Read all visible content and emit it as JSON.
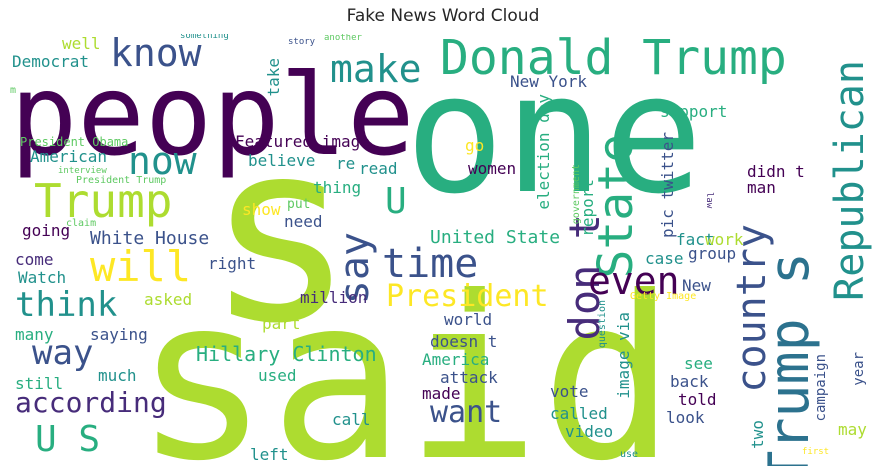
{
  "title": "Fake News Word Cloud",
  "colors": {
    "dark_purple": "#440154",
    "purple": "#472c7a",
    "indigo": "#3b528b",
    "blue": "#2c728e",
    "teal": "#21918c",
    "green_teal": "#28ae80",
    "green": "#5ec962",
    "lime": "#addc30",
    "yellow": "#fde725"
  },
  "words": [
    {
      "id": "said",
      "text": "said"
    },
    {
      "id": "s",
      "text": "s"
    },
    {
      "id": "one",
      "text": "one"
    },
    {
      "id": "people",
      "text": "people"
    },
    {
      "id": "donald-trump",
      "text": "Donald Trump"
    },
    {
      "id": "trump-big",
      "text": "Trump"
    },
    {
      "id": "trump-s",
      "text": "Trump s"
    },
    {
      "id": "know",
      "text": "know"
    },
    {
      "id": "make",
      "text": "make"
    },
    {
      "id": "now",
      "text": "now"
    },
    {
      "id": "will",
      "text": "will"
    },
    {
      "id": "say",
      "text": "say"
    },
    {
      "id": "u",
      "text": "U"
    },
    {
      "id": "time",
      "text": "time"
    },
    {
      "id": "republican",
      "text": "Republican"
    },
    {
      "id": "state",
      "text": "State"
    },
    {
      "id": "country",
      "text": "country"
    },
    {
      "id": "dont",
      "text": "don t"
    },
    {
      "id": "even",
      "text": "even"
    },
    {
      "id": "think",
      "text": "think"
    },
    {
      "id": "way",
      "text": "way"
    },
    {
      "id": "according",
      "text": "according"
    },
    {
      "id": "us",
      "text": "U S"
    },
    {
      "id": "president",
      "text": "President"
    },
    {
      "id": "want",
      "text": "want"
    },
    {
      "id": "hillary-clinton",
      "text": "Hillary Clinton"
    },
    {
      "id": "white-house",
      "text": "White House"
    },
    {
      "id": "united-state",
      "text": "United State"
    },
    {
      "id": "featured-image",
      "text": "Featured image"
    },
    {
      "id": "new-york",
      "text": "New York"
    },
    {
      "id": "democrat",
      "text": "Democrat"
    },
    {
      "id": "well",
      "text": "well"
    },
    {
      "id": "american",
      "text": "American"
    },
    {
      "id": "president-obama",
      "text": "President Obama"
    },
    {
      "id": "president-trump",
      "text": "President Trump"
    },
    {
      "id": "going",
      "text": "going"
    },
    {
      "id": "come",
      "text": "come"
    },
    {
      "id": "watch",
      "text": "Watch"
    },
    {
      "id": "many",
      "text": "many"
    },
    {
      "id": "saying",
      "text": "saying"
    },
    {
      "id": "still",
      "text": "still"
    },
    {
      "id": "much",
      "text": "much"
    },
    {
      "id": "asked",
      "text": "asked"
    },
    {
      "id": "part",
      "text": "part"
    },
    {
      "id": "used",
      "text": "used"
    },
    {
      "id": "million",
      "text": "million"
    },
    {
      "id": "right",
      "text": "right"
    },
    {
      "id": "need",
      "text": "need"
    },
    {
      "id": "thing",
      "text": "thing"
    },
    {
      "id": "re",
      "text": "re"
    },
    {
      "id": "read",
      "text": "read"
    },
    {
      "id": "women",
      "text": "women"
    },
    {
      "id": "believe",
      "text": "believe"
    },
    {
      "id": "show",
      "text": "show"
    },
    {
      "id": "put",
      "text": "put"
    },
    {
      "id": "take",
      "text": "take"
    },
    {
      "id": "go",
      "text": "go"
    },
    {
      "id": "support",
      "text": "support"
    },
    {
      "id": "election-day",
      "text": "election day"
    },
    {
      "id": "government",
      "text": "government"
    },
    {
      "id": "report",
      "text": "report"
    },
    {
      "id": "pic-twitter",
      "text": "pic twitter"
    },
    {
      "id": "didnt",
      "text": "didn t"
    },
    {
      "id": "man",
      "text": "man"
    },
    {
      "id": "case",
      "text": "case"
    },
    {
      "id": "group",
      "text": "group"
    },
    {
      "id": "fact",
      "text": "fact"
    },
    {
      "id": "work",
      "text": "work"
    },
    {
      "id": "new",
      "text": "New"
    },
    {
      "id": "world",
      "text": "world"
    },
    {
      "id": "doesnt",
      "text": "doesn t"
    },
    {
      "id": "america",
      "text": "America"
    },
    {
      "id": "attack",
      "text": "attack"
    },
    {
      "id": "made",
      "text": "made"
    },
    {
      "id": "vote",
      "text": "vote"
    },
    {
      "id": "called",
      "text": "called"
    },
    {
      "id": "video",
      "text": "video"
    },
    {
      "id": "call",
      "text": "call"
    },
    {
      "id": "left",
      "text": "left"
    },
    {
      "id": "use",
      "text": "use"
    },
    {
      "id": "image-via",
      "text": "image via"
    },
    {
      "id": "question",
      "text": "question"
    },
    {
      "id": "see",
      "text": "see"
    },
    {
      "id": "back",
      "text": "back"
    },
    {
      "id": "told",
      "text": "told"
    },
    {
      "id": "look",
      "text": "look"
    },
    {
      "id": "two",
      "text": "two"
    },
    {
      "id": "campaign",
      "text": "campaign"
    },
    {
      "id": "year",
      "text": "year"
    },
    {
      "id": "may",
      "text": "may"
    },
    {
      "id": "getty-image",
      "text": "Getty Image"
    },
    {
      "id": "law",
      "text": "law"
    },
    {
      "id": "first",
      "text": "first"
    },
    {
      "id": "story",
      "text": "story"
    },
    {
      "id": "another",
      "text": "another"
    },
    {
      "id": "something",
      "text": "something"
    },
    {
      "id": "interview",
      "text": "interview"
    },
    {
      "id": "claim",
      "text": "claim"
    },
    {
      "id": "m",
      "text": "m"
    }
  ]
}
